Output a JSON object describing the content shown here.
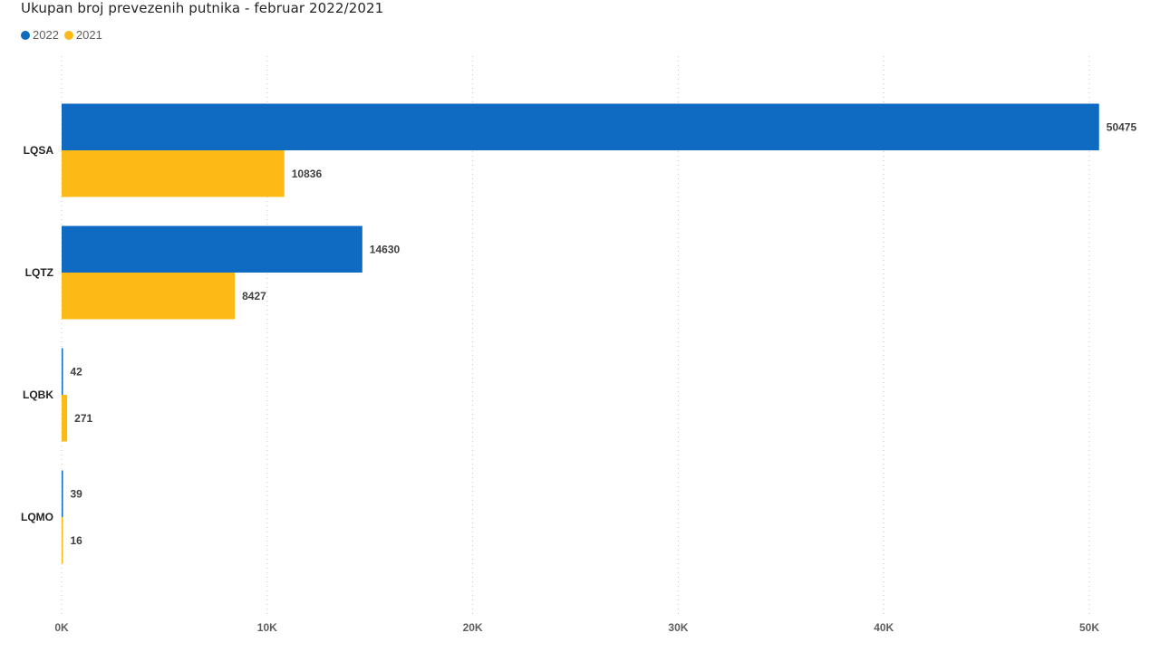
{
  "chart_data": {
    "type": "bar",
    "orientation": "horizontal",
    "title": "Ukupan broj prevezenih putnika - februar 2022/2021",
    "categories": [
      "LQSA",
      "LQTZ",
      "LQBK",
      "LQMO"
    ],
    "series": [
      {
        "name": "2022",
        "color": "#0F6BC2",
        "values": [
          50475,
          14630,
          42,
          39
        ]
      },
      {
        "name": "2021",
        "color": "#FDB916",
        "values": [
          10836,
          8427,
          271,
          16
        ]
      }
    ],
    "xlim": [
      0,
      50000
    ],
    "x_ticks": [
      0,
      10000,
      20000,
      30000,
      40000,
      50000
    ],
    "x_tick_labels": [
      "0K",
      "10K",
      "20K",
      "30K",
      "40K",
      "50K"
    ],
    "grid": "vertical-dotted",
    "legend_position": "top-left",
    "data_labels": true
  }
}
